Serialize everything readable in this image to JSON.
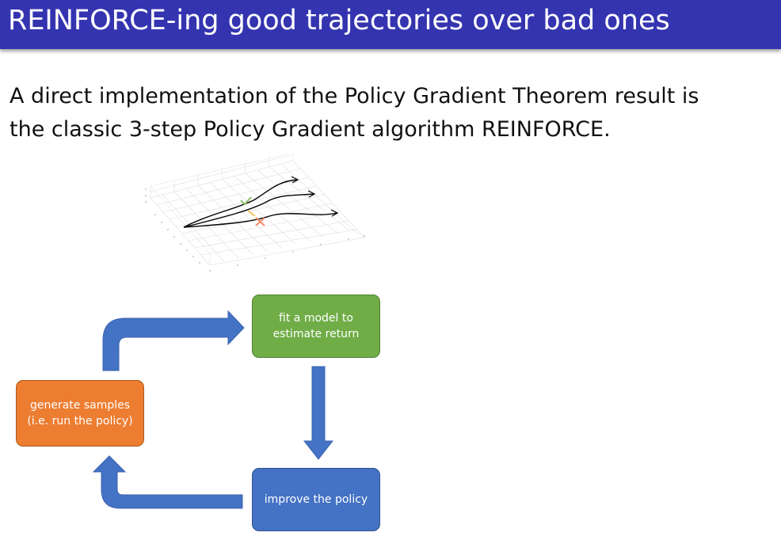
{
  "header": {
    "title": "REINFORCE-ing good trajectories over bad ones"
  },
  "body": {
    "line1": "A direct implementation of the Policy Gradient Theorem result is",
    "line2": "the classic 3-step Policy Gradient algorithm REINFORCE."
  },
  "trajectory_figure": {
    "good_mark": "check-mark-icon",
    "bad_mark": "x-mark-icon",
    "colors": {
      "good": "#8dc06b",
      "bad": "#f08a6a",
      "neutral": "#f3c45a"
    }
  },
  "flow": {
    "fit_box": {
      "line1": "fit a model to",
      "line2": "estimate return",
      "color": "#70ad47"
    },
    "generate_box": {
      "line1": "generate samples",
      "line2": "(i.e. run the policy)",
      "color": "#ed7d31"
    },
    "improve_box": {
      "line1": "improve the policy",
      "color": "#4472c4"
    },
    "arrow_color": "#4472c4"
  }
}
